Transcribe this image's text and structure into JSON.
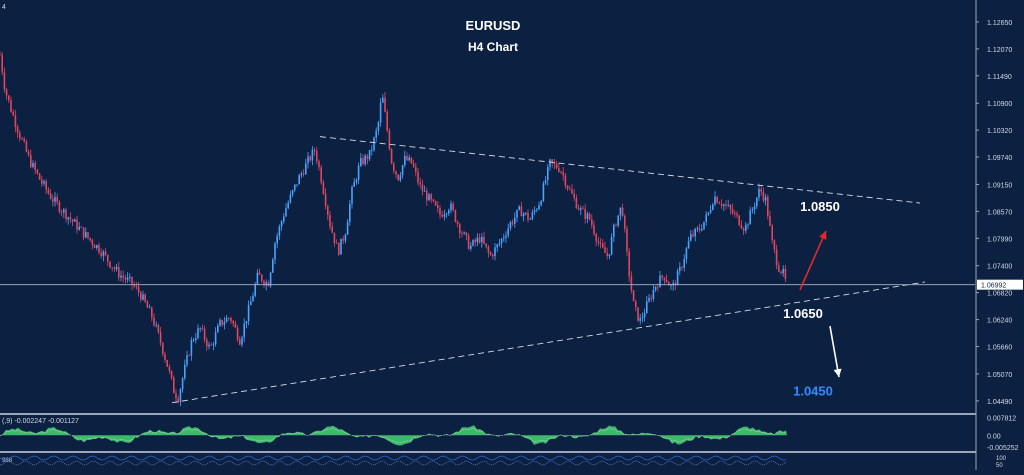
{
  "chart_data": {
    "type": "candlestick",
    "title": "EURUSD",
    "subtitle": "H4 Chart",
    "corner_label": "4",
    "ylim": [
      1.0425,
      1.1295
    ],
    "y_ticks": [
      "1.12650",
      "1.12070",
      "1.11490",
      "1.10900",
      "1.10320",
      "1.09740",
      "1.09150",
      "1.08570",
      "1.07990",
      "1.07400",
      "1.06820",
      "1.06240",
      "1.05660",
      "1.05070",
      "1.04490"
    ],
    "current_price": "1.06992",
    "grid": false,
    "colors": {
      "background": "#0c2042",
      "bull": "#4aa3ff",
      "bear": "#e0475f",
      "axis_text": "#cfd8e6",
      "trendline": "#d7dce6",
      "up_arrow": "#e02a2a",
      "down_arrow": "#ffffff",
      "target_blue": "#2f8cff",
      "macd_fill": "#3ec46d",
      "macd_line": "#c8c8c8",
      "stoch_line": "#2f6fd0"
    },
    "price_path": [
      [
        0,
        1.1195
      ],
      [
        5,
        1.112
      ],
      [
        12,
        1.107
      ],
      [
        20,
        1.102
      ],
      [
        30,
        1.0965
      ],
      [
        40,
        1.0925
      ],
      [
        52,
        1.0885
      ],
      [
        62,
        1.086
      ],
      [
        75,
        1.083
      ],
      [
        88,
        1.08
      ],
      [
        100,
        1.0775
      ],
      [
        112,
        1.074
      ],
      [
        120,
        1.072
      ],
      [
        130,
        1.0705
      ],
      [
        140,
        1.068
      ],
      [
        152,
        1.063
      ],
      [
        160,
        1.058
      ],
      [
        168,
        1.052
      ],
      [
        174,
        1.047
      ],
      [
        178,
        1.0455
      ],
      [
        185,
        1.052
      ],
      [
        192,
        1.058
      ],
      [
        200,
        1.0605
      ],
      [
        210,
        1.056
      ],
      [
        220,
        1.0615
      ],
      [
        230,
        1.063
      ],
      [
        240,
        1.058
      ],
      [
        250,
        1.0655
      ],
      [
        258,
        1.072
      ],
      [
        268,
        1.07
      ],
      [
        275,
        1.079
      ],
      [
        285,
        1.086
      ],
      [
        298,
        1.0925
      ],
      [
        308,
        1.0965
      ],
      [
        315,
        1.099
      ],
      [
        322,
        1.092
      ],
      [
        330,
        1.083
      ],
      [
        338,
        1.077
      ],
      [
        345,
        1.081
      ],
      [
        352,
        1.09
      ],
      [
        360,
        1.096
      ],
      [
        370,
        1.098
      ],
      [
        378,
        1.104
      ],
      [
        382,
        1.111
      ],
      [
        386,
        1.105
      ],
      [
        392,
        1.096
      ],
      [
        398,
        1.093
      ],
      [
        405,
        1.097
      ],
      [
        412,
        1.096
      ],
      [
        420,
        1.091
      ],
      [
        430,
        1.088
      ],
      [
        440,
        1.085
      ],
      [
        450,
        1.087
      ],
      [
        460,
        1.082
      ],
      [
        470,
        1.078
      ],
      [
        480,
        1.08
      ],
      [
        490,
        1.076
      ],
      [
        500,
        1.079
      ],
      [
        510,
        1.083
      ],
      [
        520,
        1.086
      ],
      [
        530,
        1.084
      ],
      [
        540,
        1.088
      ],
      [
        550,
        1.096
      ],
      [
        560,
        1.095
      ],
      [
        570,
        1.09
      ],
      [
        580,
        1.086
      ],
      [
        590,
        1.084
      ],
      [
        600,
        1.078
      ],
      [
        608,
        1.076
      ],
      [
        615,
        1.083
      ],
      [
        622,
        1.087
      ],
      [
        628,
        1.074
      ],
      [
        634,
        1.065
      ],
      [
        640,
        1.062
      ],
      [
        648,
        1.066
      ],
      [
        656,
        1.07
      ],
      [
        664,
        1.072
      ],
      [
        672,
        1.069
      ],
      [
        680,
        1.073
      ],
      [
        690,
        1.08
      ],
      [
        700,
        1.082
      ],
      [
        708,
        1.085
      ],
      [
        714,
        1.089
      ],
      [
        722,
        1.0875
      ],
      [
        730,
        1.086
      ],
      [
        738,
        1.084
      ],
      [
        745,
        1.082
      ],
      [
        752,
        1.086
      ],
      [
        760,
        1.0905
      ],
      [
        766,
        1.088
      ],
      [
        772,
        1.079
      ],
      [
        778,
        1.074
      ],
      [
        784,
        1.072
      ],
      [
        787,
        1.069
      ]
    ],
    "trendlines": [
      {
        "name": "resistance",
        "points": [
          [
            320,
            1.1018
          ],
          [
            920,
            1.0875
          ]
        ],
        "style": "dashed"
      },
      {
        "name": "support",
        "points": [
          [
            172,
            1.0445
          ],
          [
            925,
            1.0705
          ]
        ],
        "style": "dashed"
      },
      {
        "name": "current-price",
        "points": [
          [
            0,
            1.06992
          ],
          [
            975,
            1.06992
          ]
        ],
        "style": "solid"
      }
    ],
    "annotations": [
      {
        "name": "target-up-label",
        "text": "1.0850",
        "x": 820,
        "y": 1.0858,
        "color": "#ffffff"
      },
      {
        "name": "support-level-label",
        "text": "1.0650",
        "x": 803,
        "y": 1.0627,
        "color": "#ffffff"
      },
      {
        "name": "target-down-label",
        "text": "1.0450",
        "x": 813,
        "y": 1.046,
        "color": "#2f8cff"
      }
    ],
    "arrows": [
      {
        "name": "up-arrow",
        "from": [
          800,
          1.0688
        ],
        "to": [
          826,
          1.0815
        ],
        "color": "#e02a2a"
      },
      {
        "name": "down-arrow",
        "from": [
          830,
          1.061
        ],
        "to": [
          839,
          1.05
        ],
        "color": "#ffffff"
      }
    ],
    "indicators": {
      "macd": {
        "label": "(,9) -0.002247 -0.001127",
        "ticks": [
          "0.007812",
          "0.00",
          "-0.005252"
        ],
        "ylim": [
          -0.0065,
          0.0085
        ]
      },
      "stochastic": {
        "label_left": "988",
        "ticks": [
          "100",
          "50"
        ]
      }
    }
  }
}
